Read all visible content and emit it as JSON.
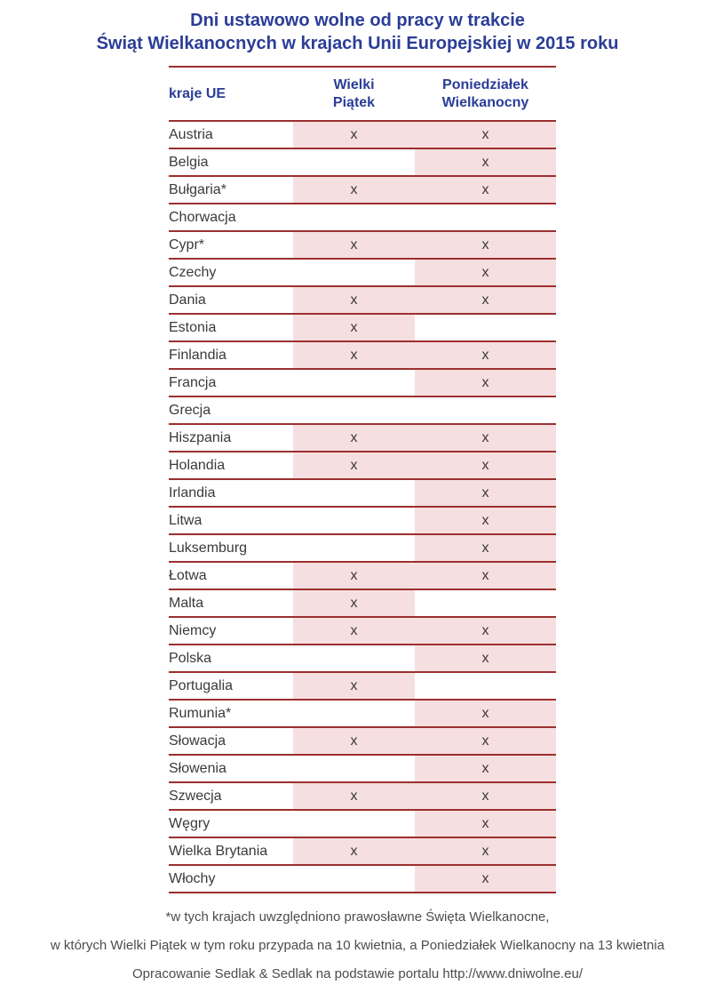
{
  "title": {
    "line1": "Dni ustawowo wolne od pracy w trakcie",
    "line2": "Świąt Wielkanocnych w krajach Unii Europejskiej w 2015 roku"
  },
  "table": {
    "headers": {
      "country": "kraje UE",
      "good_friday": {
        "line1": "Wielki",
        "line2": "Piątek"
      },
      "easter_monday": {
        "line1": "Poniedziałek",
        "line2": "Wielkanocny"
      }
    },
    "mark": "x",
    "rows": [
      {
        "country": "Austria",
        "good_friday": true,
        "easter_monday": true
      },
      {
        "country": "Belgia",
        "good_friday": false,
        "easter_monday": true
      },
      {
        "country": "Bułgaria*",
        "good_friday": true,
        "easter_monday": true
      },
      {
        "country": "Chorwacja",
        "good_friday": false,
        "easter_monday": false
      },
      {
        "country": "Cypr*",
        "good_friday": true,
        "easter_monday": true
      },
      {
        "country": "Czechy",
        "good_friday": false,
        "easter_monday": true
      },
      {
        "country": "Dania",
        "good_friday": true,
        "easter_monday": true
      },
      {
        "country": "Estonia",
        "good_friday": true,
        "easter_monday": false
      },
      {
        "country": "Finlandia",
        "good_friday": true,
        "easter_monday": true
      },
      {
        "country": "Francja",
        "good_friday": false,
        "easter_monday": true
      },
      {
        "country": "Grecja",
        "good_friday": false,
        "easter_monday": false
      },
      {
        "country": "Hiszpania",
        "good_friday": true,
        "easter_monday": true
      },
      {
        "country": "Holandia",
        "good_friday": true,
        "easter_monday": true
      },
      {
        "country": "Irlandia",
        "good_friday": false,
        "easter_monday": true
      },
      {
        "country": "Litwa",
        "good_friday": false,
        "easter_monday": true
      },
      {
        "country": "Luksemburg",
        "good_friday": false,
        "easter_monday": true
      },
      {
        "country": "Łotwa",
        "good_friday": true,
        "easter_monday": true
      },
      {
        "country": "Malta",
        "good_friday": true,
        "easter_monday": false
      },
      {
        "country": "Niemcy",
        "good_friday": true,
        "easter_monday": true
      },
      {
        "country": "Polska",
        "good_friday": false,
        "easter_monday": true
      },
      {
        "country": "Portugalia",
        "good_friday": true,
        "easter_monday": false
      },
      {
        "country": "Rumunia*",
        "good_friday": false,
        "easter_monday": true
      },
      {
        "country": "Słowacja",
        "good_friday": true,
        "easter_monday": true
      },
      {
        "country": "Słowenia",
        "good_friday": false,
        "easter_monday": true
      },
      {
        "country": "Szwecja",
        "good_friday": true,
        "easter_monday": true
      },
      {
        "country": "Węgry",
        "good_friday": false,
        "easter_monday": true
      },
      {
        "country": "Wielka Brytania",
        "good_friday": true,
        "easter_monday": true
      },
      {
        "country": "Włochy",
        "good_friday": false,
        "easter_monday": true
      }
    ]
  },
  "footnotes": [
    "*w tych krajach uwzględniono prawosławne Święta Wielkanocne,",
    "w których Wielki Piątek w tym roku przypada na 10 kwietnia, a Poniedziałek Wielkanocny na 13 kwietnia",
    "Opracowanie Sedlak & Sedlak na podstawie portalu http://www.dniwolne.eu/"
  ],
  "colors": {
    "title_blue": "#2b3d96",
    "line_red": "#9c2f2f",
    "cell_pink": "#f6dfe0",
    "body_text": "#3a3a3a",
    "mark_text": "#47474f",
    "footnote_gray": "#4c4c4c"
  },
  "chart_data": {
    "type": "table",
    "title": "Dni ustawowo wolne od pracy w trakcie Świąt Wielkanocnych w krajach Unii Europejskiej w 2015 roku",
    "columns": [
      "kraje UE",
      "Wielki Piątek",
      "Poniedziałek Wielkanocny"
    ],
    "rows": [
      [
        "Austria",
        "x",
        "x"
      ],
      [
        "Belgia",
        "",
        "x"
      ],
      [
        "Bułgaria*",
        "x",
        "x"
      ],
      [
        "Chorwacja",
        "",
        ""
      ],
      [
        "Cypr*",
        "x",
        "x"
      ],
      [
        "Czechy",
        "",
        "x"
      ],
      [
        "Dania",
        "x",
        "x"
      ],
      [
        "Estonia",
        "x",
        ""
      ],
      [
        "Finlandia",
        "x",
        "x"
      ],
      [
        "Francja",
        "",
        "x"
      ],
      [
        "Grecja",
        "",
        ""
      ],
      [
        "Hiszpania",
        "x",
        "x"
      ],
      [
        "Holandia",
        "x",
        "x"
      ],
      [
        "Irlandia",
        "",
        "x"
      ],
      [
        "Litwa",
        "",
        "x"
      ],
      [
        "Luksemburg",
        "",
        "x"
      ],
      [
        "Łotwa",
        "x",
        "x"
      ],
      [
        "Malta",
        "x",
        ""
      ],
      [
        "Niemcy",
        "x",
        "x"
      ],
      [
        "Polska",
        "",
        "x"
      ],
      [
        "Portugalia",
        "x",
        ""
      ],
      [
        "Rumunia*",
        "",
        "x"
      ],
      [
        "Słowacja",
        "x",
        "x"
      ],
      [
        "Słowenia",
        "",
        "x"
      ],
      [
        "Szwecja",
        "x",
        "x"
      ],
      [
        "Węgry",
        "",
        "x"
      ],
      [
        "Wielka Brytania",
        "x",
        "x"
      ],
      [
        "Włochy",
        "",
        "x"
      ]
    ]
  }
}
